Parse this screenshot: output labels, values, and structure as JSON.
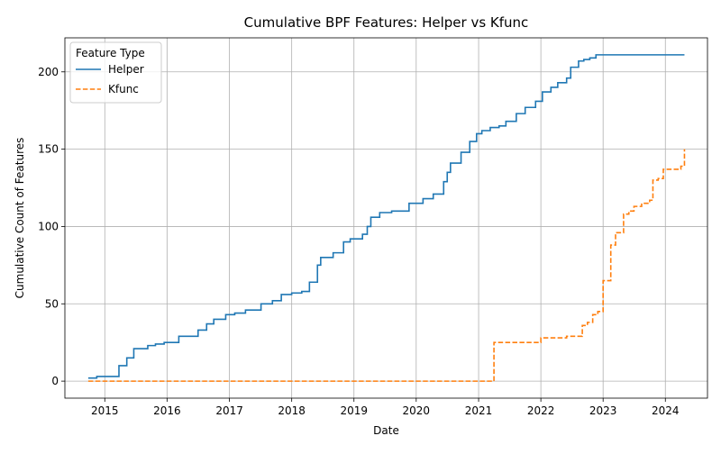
{
  "chart_data": {
    "type": "line",
    "title": "Cumulative BPF Features: Helper vs Kfunc",
    "xlabel": "Date",
    "ylabel": "Cumulative Count of Features",
    "x_type": "date",
    "xlim": [
      "2014-05-12",
      "2024-09-04"
    ],
    "ylim": [
      -11,
      222
    ],
    "x_ticks": [
      {
        "value": "2015-01-01",
        "label": "2015"
      },
      {
        "value": "2016-01-01",
        "label": "2016"
      },
      {
        "value": "2017-01-01",
        "label": "2017"
      },
      {
        "value": "2018-01-01",
        "label": "2018"
      },
      {
        "value": "2019-01-01",
        "label": "2019"
      },
      {
        "value": "2020-01-01",
        "label": "2020"
      },
      {
        "value": "2021-01-01",
        "label": "2021"
      },
      {
        "value": "2022-01-01",
        "label": "2022"
      },
      {
        "value": "2023-01-01",
        "label": "2023"
      },
      {
        "value": "2024-01-01",
        "label": "2024"
      }
    ],
    "y_ticks": [
      0,
      50,
      100,
      150,
      200
    ],
    "grid": true,
    "legend": {
      "title": "Feature Type",
      "position": "top-left"
    },
    "series": [
      {
        "name": "Helper",
        "color": "#1f77b4",
        "style": "solid",
        "step": true,
        "points": [
          [
            "2014-09-26",
            2
          ],
          [
            "2014-11-15",
            3
          ],
          [
            "2015-03-25",
            10
          ],
          [
            "2015-05-10",
            15
          ],
          [
            "2015-06-20",
            21
          ],
          [
            "2015-09-10",
            23
          ],
          [
            "2015-10-25",
            24
          ],
          [
            "2015-12-15",
            25
          ],
          [
            "2016-03-10",
            29
          ],
          [
            "2016-07-01",
            33
          ],
          [
            "2016-08-20",
            37
          ],
          [
            "2016-10-01",
            40
          ],
          [
            "2016-12-10",
            43
          ],
          [
            "2017-02-01",
            44
          ],
          [
            "2017-04-05",
            46
          ],
          [
            "2017-07-05",
            50
          ],
          [
            "2017-09-10",
            52
          ],
          [
            "2017-11-01",
            56
          ],
          [
            "2018-01-01",
            57
          ],
          [
            "2018-03-01",
            58
          ],
          [
            "2018-04-15",
            64
          ],
          [
            "2018-06-01",
            75
          ],
          [
            "2018-06-20",
            80
          ],
          [
            "2018-09-01",
            83
          ],
          [
            "2018-11-01",
            90
          ],
          [
            "2018-12-10",
            92
          ],
          [
            "2019-02-20",
            95
          ],
          [
            "2019-03-20",
            100
          ],
          [
            "2019-04-10",
            106
          ],
          [
            "2019-06-01",
            109
          ],
          [
            "2019-08-10",
            110
          ],
          [
            "2019-11-20",
            115
          ],
          [
            "2020-02-10",
            118
          ],
          [
            "2020-04-10",
            121
          ],
          [
            "2020-06-10",
            129
          ],
          [
            "2020-07-01",
            135
          ],
          [
            "2020-07-20",
            141
          ],
          [
            "2020-09-20",
            148
          ],
          [
            "2020-11-10",
            155
          ],
          [
            "2020-12-20",
            160
          ],
          [
            "2021-01-20",
            162
          ],
          [
            "2021-03-10",
            164
          ],
          [
            "2021-05-01",
            165
          ],
          [
            "2021-06-10",
            168
          ],
          [
            "2021-08-10",
            173
          ],
          [
            "2021-10-01",
            177
          ],
          [
            "2021-12-01",
            181
          ],
          [
            "2022-01-10",
            187
          ],
          [
            "2022-03-01",
            190
          ],
          [
            "2022-04-10",
            193
          ],
          [
            "2022-06-01",
            196
          ],
          [
            "2022-06-25",
            203
          ],
          [
            "2022-08-10",
            207
          ],
          [
            "2022-09-10",
            208
          ],
          [
            "2022-10-15",
            209
          ],
          [
            "2022-11-20",
            211
          ],
          [
            "2024-04-22",
            211
          ]
        ]
      },
      {
        "name": "Kfunc",
        "color": "#ff7f0e",
        "style": "dashed",
        "step": true,
        "points": [
          [
            "2014-09-26",
            0
          ],
          [
            "2021-03-30",
            0
          ],
          [
            "2021-04-01",
            25
          ],
          [
            "2022-01-01",
            28
          ],
          [
            "2022-06-01",
            29
          ],
          [
            "2022-09-01",
            36
          ],
          [
            "2022-10-01",
            38
          ],
          [
            "2022-11-01",
            43
          ],
          [
            "2022-12-01",
            45
          ],
          [
            "2023-01-01",
            65
          ],
          [
            "2023-02-15",
            88
          ],
          [
            "2023-03-15",
            96
          ],
          [
            "2023-05-01",
            108
          ],
          [
            "2023-06-01",
            110
          ],
          [
            "2023-07-01",
            113
          ],
          [
            "2023-08-15",
            115
          ],
          [
            "2023-10-01",
            117
          ],
          [
            "2023-10-20",
            130
          ],
          [
            "2023-11-20",
            131
          ],
          [
            "2023-12-20",
            137
          ],
          [
            "2024-04-01",
            139
          ],
          [
            "2024-04-22",
            150
          ]
        ]
      }
    ]
  }
}
